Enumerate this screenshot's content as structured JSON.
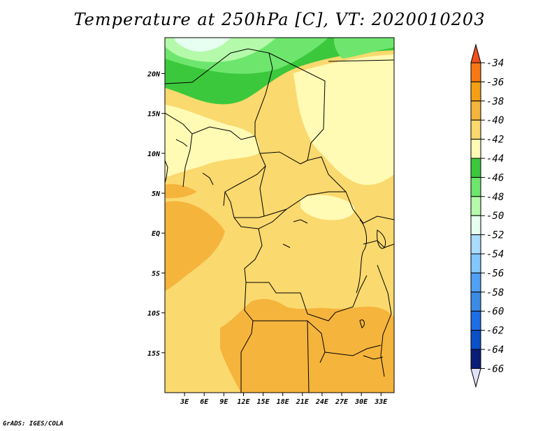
{
  "title": "Temperature at 250hPa [C], VT: 2020010203",
  "footer": "GrADS: IGES/COLA",
  "chart_data": {
    "type": "heatmap",
    "title": "Temperature at 250hPa [C], VT: 2020010203",
    "variable": "Temperature",
    "units": "C",
    "level": "250hPa",
    "valid_time": "2020010203",
    "lon_range": [
      0,
      35
    ],
    "lat_range": [
      -20,
      24.5
    ],
    "x_ticks": [
      "3E",
      "6E",
      "9E",
      "12E",
      "15E",
      "18E",
      "21E",
      "24E",
      "27E",
      "30E",
      "33E"
    ],
    "y_ticks": [
      "20N",
      "15N",
      "10N",
      "5N",
      "EQ",
      "5S",
      "10S",
      "15S"
    ],
    "colorbar": {
      "labels": [
        "-34",
        "-36",
        "-38",
        "-40",
        "-42",
        "-44",
        "-46",
        "-48",
        "-50",
        "-52",
        "-54",
        "-56",
        "-58",
        "-60",
        "-62",
        "-64",
        "-66"
      ],
      "colors": [
        "#f0501e",
        "#fa7814",
        "#f5a014",
        "#f5b43c",
        "#fad96e",
        "#fffab4",
        "#3cc83c",
        "#6ee66e",
        "#b4faaa",
        "#e6fff0",
        "#aadcff",
        "#82c8ff",
        "#50a0f5",
        "#3c8ce6",
        "#1e6ee6",
        "#0a50c8",
        "#0a1e78",
        "#e1e1fa"
      ]
    },
    "regions": [
      {
        "band": "-50",
        "description": "northwest corner"
      },
      {
        "band": "-48",
        "description": "north edge"
      },
      {
        "band": "-46",
        "description": "north edge"
      },
      {
        "band": "-44",
        "description": "Sahara band near 18-22N"
      },
      {
        "band": "-42",
        "description": "West Africa / Sahel, Central Africa"
      },
      {
        "band": "-40",
        "description": "most of the domain"
      },
      {
        "band": "-38",
        "description": "Gulf of Guinea, southern Africa"
      }
    ]
  }
}
